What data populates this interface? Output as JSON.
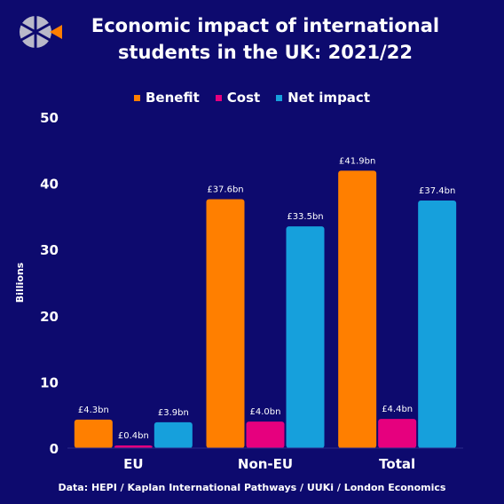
{
  "title_line1": "Economic impact of international",
  "title_line2": "students in the UK: 2021/22",
  "source": "Data: HEPI / Kaplan International Pathways / UUKi / London Economics",
  "colors": {
    "background": "#0d0a6e",
    "benefit": "#ff7f00",
    "cost": "#e6007e",
    "net": "#16a0dc"
  },
  "chart_data": {
    "type": "bar",
    "categories": [
      "EU",
      "Non-EU",
      "Total"
    ],
    "series": [
      {
        "name": "Benefit",
        "values": [
          4.3,
          37.6,
          41.9
        ],
        "labels": [
          "£4.3bn",
          "£37.6bn",
          "£41.9bn"
        ]
      },
      {
        "name": "Cost",
        "values": [
          0.4,
          4.0,
          4.4
        ],
        "labels": [
          "£0.4bn",
          "£4.0bn",
          "£4.4bn"
        ]
      },
      {
        "name": "Net impact",
        "values": [
          3.9,
          33.5,
          37.4
        ],
        "labels": [
          "£3.9bn",
          "£33.5bn",
          "£37.4bn"
        ]
      }
    ],
    "ylabel": "Billions",
    "ylim": [
      0,
      50
    ],
    "yticks": [
      0,
      10,
      20,
      30,
      40,
      50
    ],
    "grid": false,
    "legend_position": "top-center"
  }
}
